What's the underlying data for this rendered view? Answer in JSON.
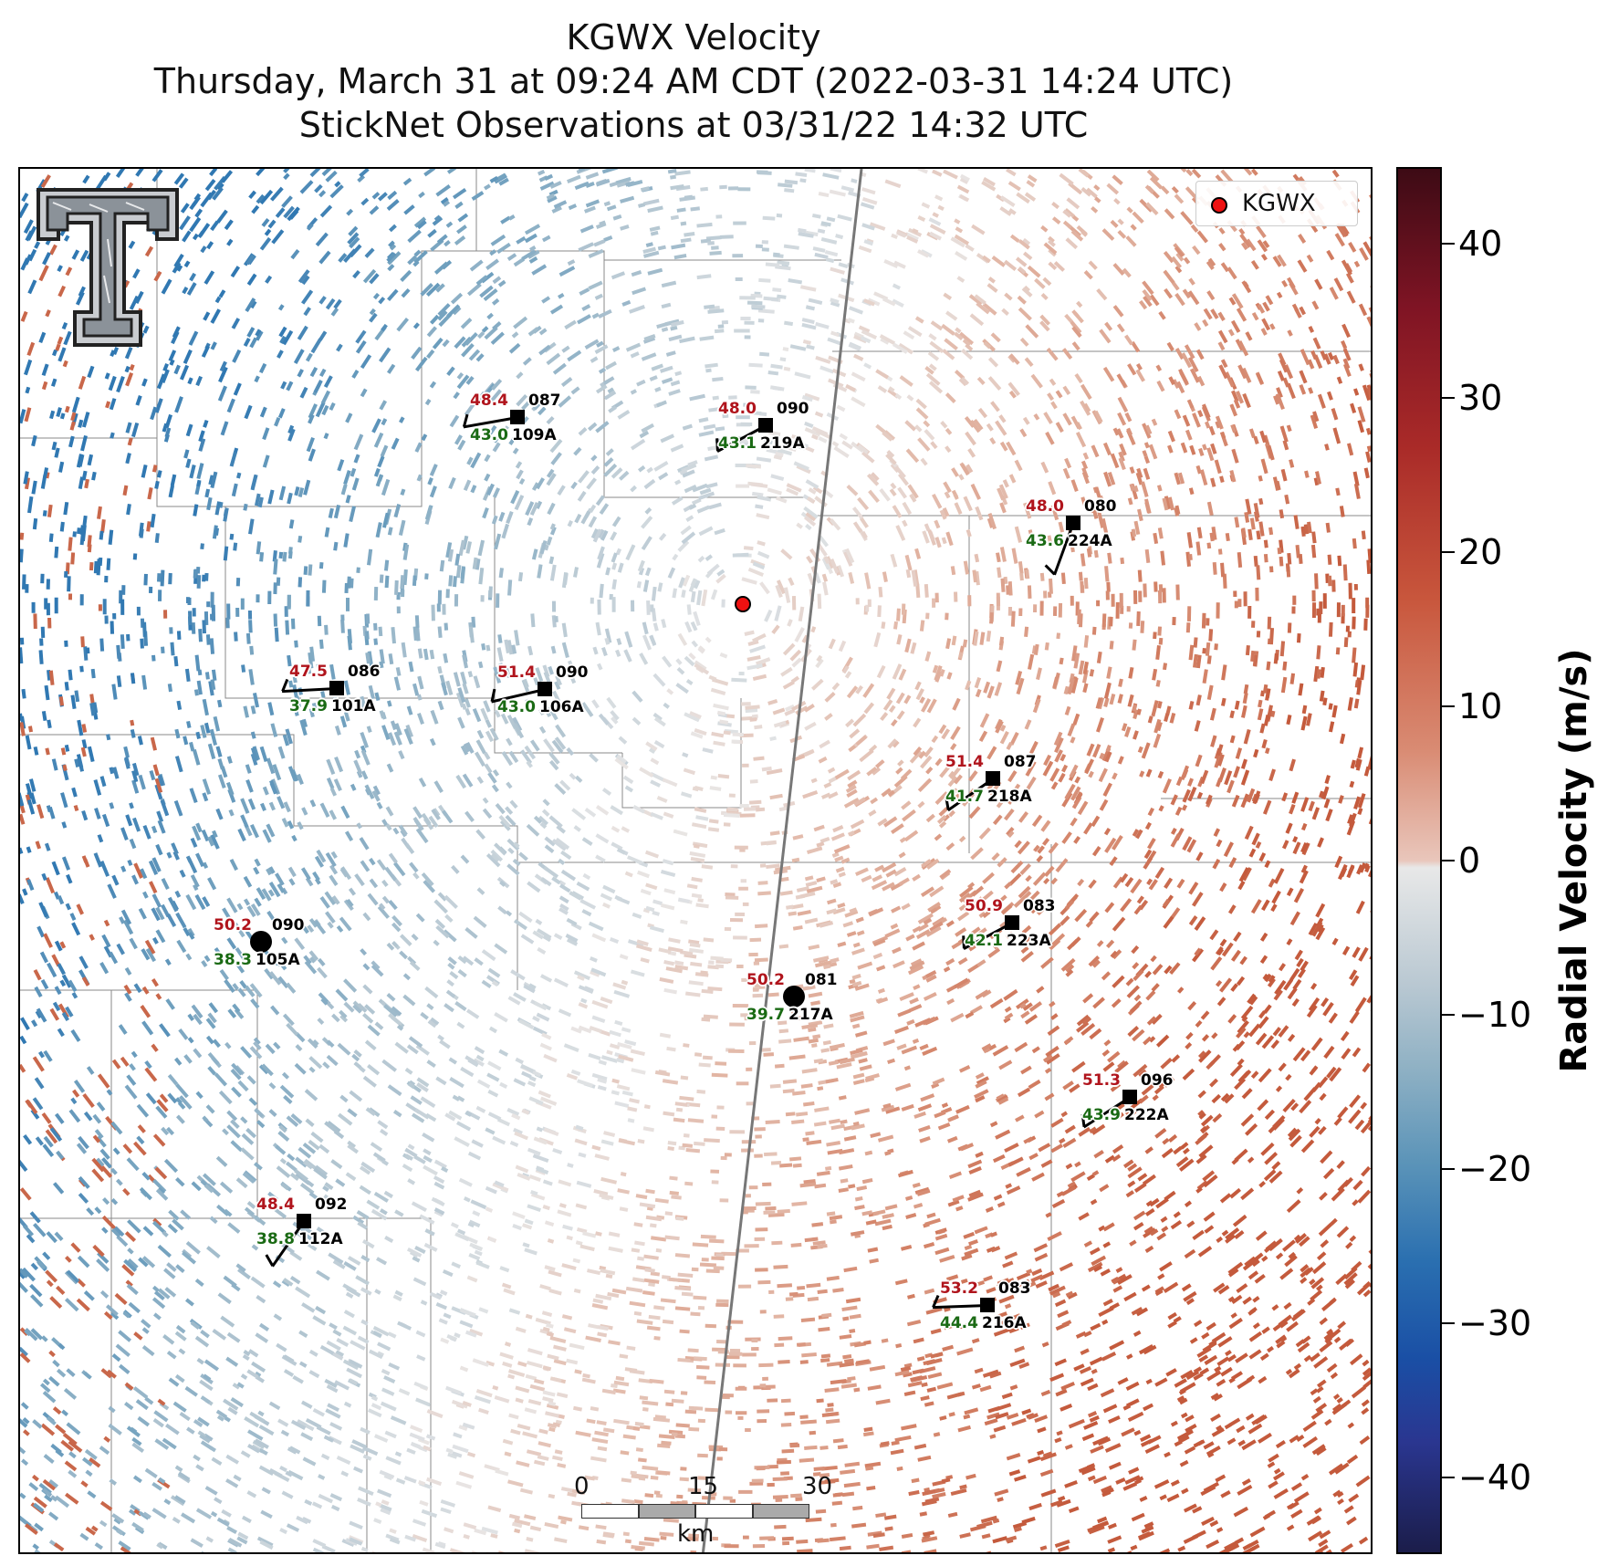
{
  "header": {
    "title": "KGWX Velocity",
    "subtitle": "Thursday, March 31 at 09:24 AM CDT (2022-03-31 14:24 UTC)",
    "obs_line": "StickNet Observations at 03/31/22 14:32 UTC"
  },
  "legend": {
    "label": "KGWX",
    "marker_color": "#e11111"
  },
  "colorbar": {
    "title": "Radial Velocity (m/s)",
    "ticks": [
      "40",
      "30",
      "20",
      "10",
      "0",
      "−10",
      "−20",
      "−30",
      "−40"
    ],
    "range": [
      -45,
      45
    ],
    "colors": {
      "positive": "#c8563c",
      "negative": "#2a6fb0",
      "zero": "#e8e8e8"
    }
  },
  "scale_bar": {
    "ticks": [
      "0",
      "15",
      "30"
    ],
    "unit": "km"
  },
  "logo": {
    "name": "texas-tech-double-t-logo",
    "text": "T"
  },
  "stations": [
    {
      "id": "109A",
      "gust": "48.4",
      "dir": "087",
      "speed": "43.0",
      "barb": true
    },
    {
      "id": "219A",
      "gust": "48.0",
      "dir": "090",
      "speed": "43.1",
      "barb": true
    },
    {
      "id": "224A",
      "gust": "48.0",
      "dir": "080",
      "speed": "43.6",
      "barb": true
    },
    {
      "id": "101A",
      "gust": "47.5",
      "dir": "086",
      "speed": "37.9",
      "barb": true
    },
    {
      "id": "106A",
      "gust": "51.4",
      "dir": "090",
      "speed": "43.0",
      "barb": true
    },
    {
      "id": "218A",
      "gust": "51.4",
      "dir": "087",
      "speed": "41.7",
      "barb": true
    },
    {
      "id": "223A",
      "gust": "50.9",
      "dir": "083",
      "speed": "42.1",
      "barb": true
    },
    {
      "id": "105A",
      "gust": "50.2",
      "dir": "090",
      "speed": "38.3",
      "barb": false
    },
    {
      "id": "217A",
      "gust": "50.2",
      "dir": "081",
      "speed": "39.7",
      "barb": false
    },
    {
      "id": "222A",
      "gust": "51.3",
      "dir": "096",
      "speed": "43.9",
      "barb": true
    },
    {
      "id": "112A",
      "gust": "48.4",
      "dir": "092",
      "speed": "38.8",
      "barb": true
    },
    {
      "id": "216A",
      "gust": "53.2",
      "dir": "083",
      "speed": "44.4",
      "barb": true
    }
  ]
}
